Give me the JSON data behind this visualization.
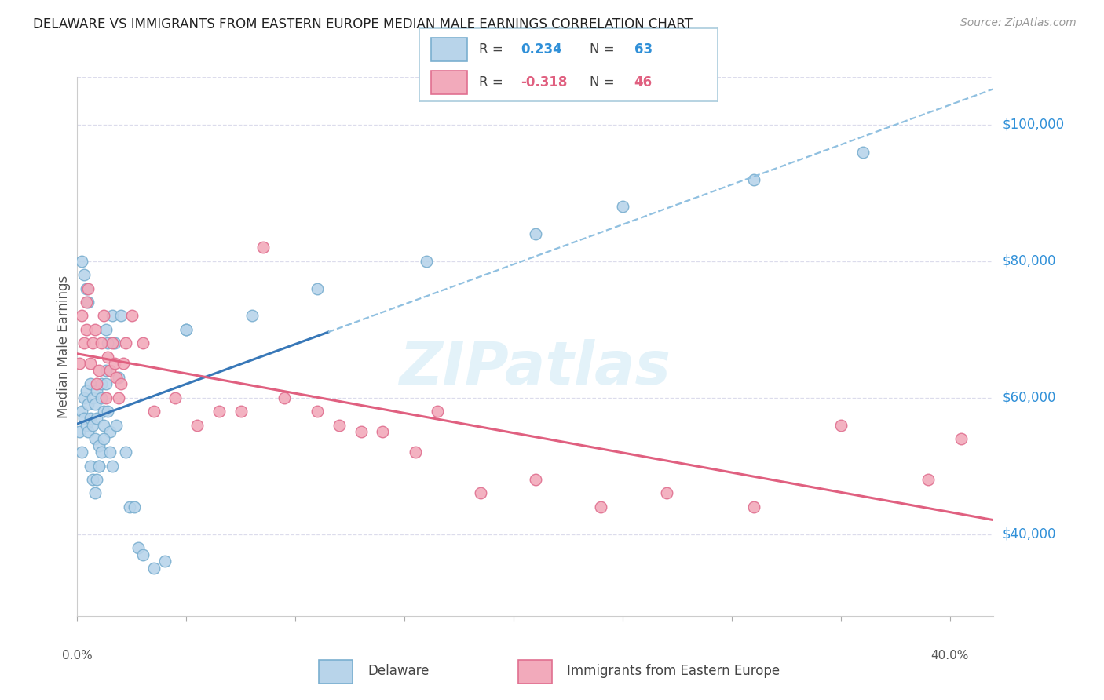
{
  "title": "DELAWARE VS IMMIGRANTS FROM EASTERN EUROPE MEDIAN MALE EARNINGS CORRELATION CHART",
  "source": "Source: ZipAtlas.com",
  "ylabel": "Median Male Earnings",
  "xmin": 0.0,
  "xmax": 0.42,
  "ymin": 28000,
  "ymax": 107000,
  "yticks": [
    40000,
    60000,
    80000,
    100000
  ],
  "ytick_labels": [
    "$40,000",
    "$60,000",
    "$80,000",
    "$100,000"
  ],
  "watermark": "ZIPatlas",
  "delaware_color": "#b8d4ea",
  "delaware_edge": "#7aafd0",
  "eastern_color": "#f2aabb",
  "eastern_edge": "#e07090",
  "trendline_del_solid": "#3878b8",
  "trendline_del_dash": "#90c0e0",
  "trendline_eas": "#e06080",
  "grid_color": "#dcdcec",
  "label_color": "#3090d8",
  "title_color": "#222222",
  "axis_label_color": "#555555",
  "background": "#ffffff",
  "delaware_x": [
    0.001,
    0.002,
    0.002,
    0.003,
    0.003,
    0.004,
    0.004,
    0.005,
    0.005,
    0.006,
    0.006,
    0.007,
    0.007,
    0.008,
    0.008,
    0.009,
    0.009,
    0.01,
    0.01,
    0.011,
    0.011,
    0.012,
    0.012,
    0.013,
    0.013,
    0.014,
    0.015,
    0.016,
    0.017,
    0.018,
    0.019,
    0.02,
    0.022,
    0.024,
    0.026,
    0.028,
    0.03,
    0.035,
    0.04,
    0.05,
    0.002,
    0.003,
    0.004,
    0.005,
    0.006,
    0.007,
    0.008,
    0.009,
    0.01,
    0.011,
    0.012,
    0.013,
    0.014,
    0.015,
    0.016,
    0.05,
    0.08,
    0.11,
    0.16,
    0.21,
    0.25,
    0.31,
    0.36
  ],
  "delaware_y": [
    55000,
    52000,
    58000,
    57000,
    60000,
    56000,
    61000,
    59000,
    55000,
    57000,
    62000,
    60000,
    56000,
    54000,
    59000,
    61000,
    57000,
    50000,
    53000,
    62000,
    60000,
    58000,
    56000,
    64000,
    62000,
    58000,
    55000,
    72000,
    68000,
    56000,
    63000,
    72000,
    52000,
    44000,
    44000,
    38000,
    37000,
    35000,
    36000,
    70000,
    80000,
    78000,
    76000,
    74000,
    50000,
    48000,
    46000,
    48000,
    50000,
    52000,
    54000,
    70000,
    68000,
    52000,
    50000,
    70000,
    72000,
    76000,
    80000,
    84000,
    88000,
    92000,
    96000
  ],
  "eastern_x": [
    0.001,
    0.002,
    0.003,
    0.004,
    0.004,
    0.005,
    0.006,
    0.007,
    0.008,
    0.009,
    0.01,
    0.011,
    0.012,
    0.013,
    0.014,
    0.015,
    0.016,
    0.017,
    0.018,
    0.019,
    0.02,
    0.021,
    0.022,
    0.025,
    0.03,
    0.035,
    0.045,
    0.055,
    0.065,
    0.075,
    0.085,
    0.095,
    0.11,
    0.12,
    0.13,
    0.14,
    0.155,
    0.165,
    0.185,
    0.21,
    0.24,
    0.27,
    0.31,
    0.35,
    0.39,
    0.405
  ],
  "eastern_y": [
    65000,
    72000,
    68000,
    74000,
    70000,
    76000,
    65000,
    68000,
    70000,
    62000,
    64000,
    68000,
    72000,
    60000,
    66000,
    64000,
    68000,
    65000,
    63000,
    60000,
    62000,
    65000,
    68000,
    72000,
    68000,
    58000,
    60000,
    56000,
    58000,
    58000,
    82000,
    60000,
    58000,
    56000,
    55000,
    55000,
    52000,
    58000,
    46000,
    48000,
    44000,
    46000,
    44000,
    56000,
    48000,
    54000
  ]
}
